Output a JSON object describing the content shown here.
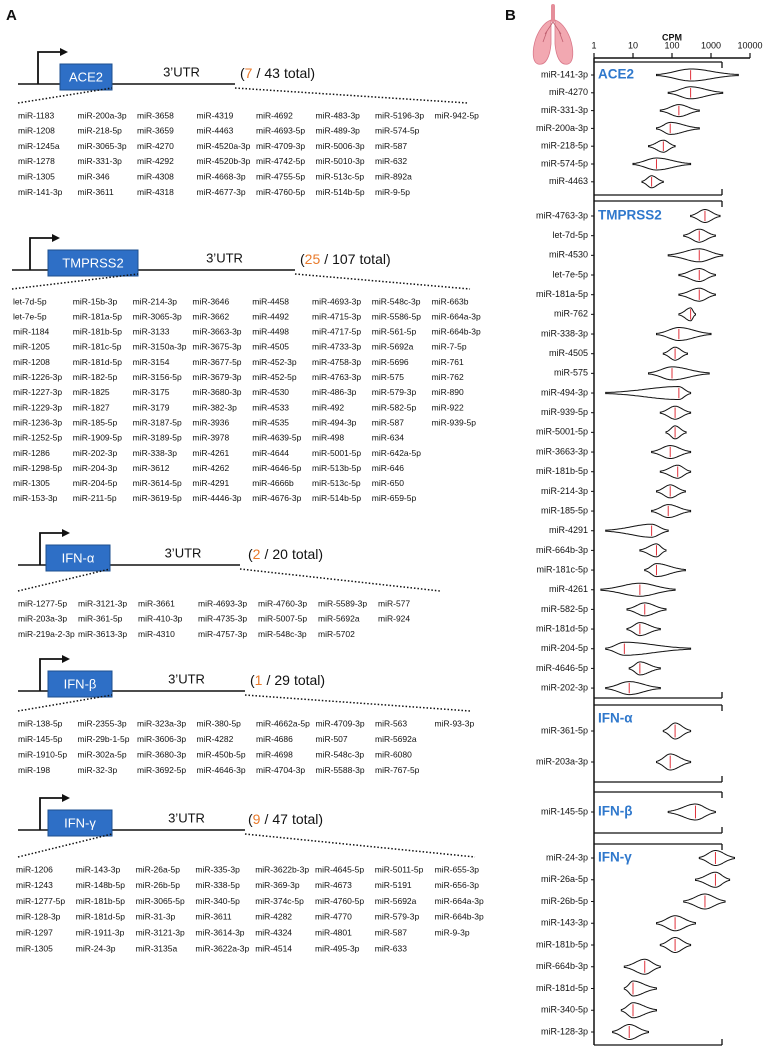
{
  "panel_a": {
    "label": "A",
    "utr_label": "3’UTR",
    "genes": [
      {
        "name": "ACE2",
        "count": {
          "open": "(",
          "hits": 7,
          "sep": "/",
          "total": 43,
          "close": "total)"
        },
        "rows": [
          [
            "miR-1183",
            "miR-200a-3p",
            "miR-3658",
            "miR-4319",
            "miR-4692",
            "miR-483-3p",
            "miR-5196-3p",
            "miR-942-5p"
          ],
          [
            "miR-1208",
            "miR-218-5p",
            "miR-3659",
            "miR-4463",
            "miR-4693-5p",
            "miR-489-3p",
            "miR-574-5p"
          ],
          [
            "miR-1245a",
            "miR-3065-3p",
            "miR-4270",
            "miR-4520a-3p",
            "miR-4709-3p",
            "miR-5006-3p",
            "miR-587"
          ],
          [
            "miR-1278",
            "miR-331-3p",
            "miR-4292",
            "miR-4520b-3p",
            "miR-4742-5p",
            "miR-5010-3p",
            "miR-632"
          ],
          [
            "miR-1305",
            "miR-346",
            "miR-4308",
            "miR-4668-3p",
            "miR-4755-5p",
            "miR-513c-5p",
            "miR-892a"
          ],
          [
            "miR-141-3p",
            "miR-3611",
            "miR-4318",
            "miR-4677-3p",
            "miR-4760-5p",
            "miR-514b-5p",
            "miR-9-5p"
          ]
        ],
        "highlighted": [
          [
            0,
            1
          ],
          [
            1,
            1
          ],
          [
            1,
            3
          ],
          [
            1,
            6
          ],
          [
            2,
            2
          ],
          [
            3,
            1
          ],
          [
            5,
            0
          ]
        ]
      },
      {
        "name": "TMPRSS2",
        "count": {
          "open": "(",
          "hits": 25,
          "sep": "/",
          "total": 107,
          "close": "total)"
        },
        "rows": [
          [
            "let-7d-5p",
            "miR-15b-3p",
            "miR-214-3p",
            "miR-3646",
            "miR-4458",
            "miR-4693-3p",
            "miR-548c-3p",
            "miR-663b"
          ],
          [
            "let-7e-5p",
            "miR-181a-5p",
            "miR-3065-3p",
            "miR-3662",
            "miR-4492",
            "miR-4715-3p",
            "miR-5586-5p",
            "miR-664a-3p"
          ],
          [
            "miR-1184",
            "miR-181b-5p",
            "miR-3133",
            "miR-3663-3p",
            "miR-4498",
            "miR-4717-5p",
            "miR-561-5p",
            "miR-664b-3p"
          ],
          [
            "miR-1205",
            "miR-181c-5p",
            "miR-3150a-3p",
            "miR-3675-3p",
            "miR-4505",
            "miR-4733-3p",
            "miR-5692a",
            "miR-7-5p"
          ],
          [
            "miR-1208",
            "miR-181d-5p",
            "miR-3154",
            "miR-3677-5p",
            "miR-452-3p",
            "miR-4758-3p",
            "miR-5696",
            "miR-761"
          ],
          [
            "miR-1226-3p",
            "miR-182-5p",
            "miR-3156-5p",
            "miR-3679-3p",
            "miR-452-5p",
            "miR-4763-3p",
            "miR-575",
            "miR-762"
          ],
          [
            "miR-1227-3p",
            "miR-1825",
            "miR-3175",
            "miR-3680-3p",
            "miR-4530",
            "miR-486-3p",
            "miR-579-3p",
            "miR-890"
          ],
          [
            "miR-1229-3p",
            "miR-1827",
            "miR-3179",
            "miR-382-3p",
            "miR-4533",
            "miR-492",
            "miR-582-5p",
            "miR-922"
          ],
          [
            "miR-1236-3p",
            "miR-185-5p",
            "miR-3187-5p",
            "miR-3936",
            "miR-4535",
            "miR-494-3p",
            "miR-587",
            "miR-939-5p"
          ],
          [
            "miR-1252-5p",
            "miR-1909-5p",
            "miR-3189-5p",
            "miR-3978",
            "miR-4639-5p",
            "miR-498",
            "miR-634"
          ],
          [
            "miR-1286",
            "miR-202-3p",
            "miR-338-3p",
            "miR-4261",
            "miR-4644",
            "miR-5001-5p",
            "miR-642a-5p"
          ],
          [
            "miR-1298-5p",
            "miR-204-3p",
            "miR-3612",
            "miR-4262",
            "miR-4646-5p",
            "miR-513b-5p",
            "miR-646"
          ],
          [
            "miR-1305",
            "miR-204-5p",
            "miR-3614-5p",
            "miR-4291",
            "miR-4666b",
            "miR-513c-5p",
            "miR-650"
          ],
          [
            "miR-153-3p",
            "miR-211-5p",
            "miR-3619-5p",
            "miR-4446-3p",
            "miR-4676-3p",
            "miR-514b-5p",
            "miR-659-5p"
          ]
        ],
        "highlighted": [
          [
            0,
            0
          ],
          [
            0,
            2
          ],
          [
            1,
            0
          ],
          [
            1,
            1
          ],
          [
            2,
            1
          ],
          [
            2,
            3
          ],
          [
            2,
            7
          ],
          [
            3,
            1
          ],
          [
            3,
            4
          ],
          [
            4,
            1
          ],
          [
            5,
            5
          ],
          [
            5,
            6
          ],
          [
            5,
            7
          ],
          [
            6,
            4
          ],
          [
            7,
            6
          ],
          [
            8,
            1
          ],
          [
            8,
            5
          ],
          [
            8,
            7
          ],
          [
            10,
            1
          ],
          [
            10,
            2
          ],
          [
            10,
            3
          ],
          [
            10,
            5
          ],
          [
            11,
            4
          ],
          [
            12,
            1
          ],
          [
            12,
            3
          ]
        ]
      },
      {
        "name": "IFN-α",
        "count": {
          "open": "(",
          "hits": 2,
          "sep": "/",
          "total": 20,
          "close": "total)"
        },
        "rows": [
          [
            "miR-1277-5p",
            "miR-3121-3p",
            "miR-3661",
            "miR-4693-3p",
            "miR-4760-3p",
            "miR-5589-3p",
            "miR-577"
          ],
          [
            "miR-203a-3p",
            "miR-361-5p",
            "miR-410-3p",
            "miR-4735-3p",
            "miR-5007-5p",
            "miR-5692a",
            "miR-924"
          ],
          [
            "miR-219a-2-3p",
            "miR-3613-3p",
            "miR-4310",
            "miR-4757-3p",
            "miR-548c-3p",
            "miR-5702"
          ]
        ],
        "highlighted": [
          [
            1,
            0
          ],
          [
            1,
            1
          ]
        ]
      },
      {
        "name": "IFN-β",
        "count": {
          "open": "(",
          "hits": 1,
          "sep": "/",
          "total": 29,
          "close": "total)"
        },
        "rows": [
          [
            "miR-138-5p",
            "miR-2355-3p",
            "miR-323a-3p",
            "miR-380-5p",
            "miR-4662a-5p",
            "miR-4709-3p",
            "miR-563",
            "miR-93-3p"
          ],
          [
            "miR-145-5p",
            "miR-29b-1-5p",
            "miR-3606-3p",
            "miR-4282",
            "miR-4686",
            "miR-507",
            "miR-5692a"
          ],
          [
            "miR-1910-5p",
            "miR-302a-5p",
            "miR-3680-3p",
            "miR-450b-5p",
            "miR-4698",
            "miR-548c-3p",
            "miR-6080"
          ],
          [
            "miR-198",
            "miR-32-3p",
            "miR-3692-5p",
            "miR-4646-3p",
            "miR-4704-3p",
            "miR-5588-3p",
            "miR-767-5p"
          ]
        ],
        "highlighted": [
          [
            1,
            0
          ]
        ]
      },
      {
        "name": "IFN-γ",
        "count": {
          "open": "(",
          "hits": 9,
          "sep": "/",
          "total": 47,
          "close": "total)"
        },
        "rows": [
          [
            "miR-1206",
            "miR-143-3p",
            "miR-26a-5p",
            "miR-335-3p",
            "miR-3622b-3p",
            "miR-4645-5p",
            "miR-5011-5p",
            "miR-655-3p"
          ],
          [
            "miR-1243",
            "miR-148b-5p",
            "miR-26b-5p",
            "miR-338-5p",
            "miR-369-3p",
            "miR-4673",
            "miR-5191",
            "miR-656-3p"
          ],
          [
            "miR-1277-5p",
            "miR-181b-5p",
            "miR-3065-5p",
            "miR-340-5p",
            "miR-374c-5p",
            "miR-4760-5p",
            "miR-5692a",
            "miR-664a-3p"
          ],
          [
            "miR-128-3p",
            "miR-181d-5p",
            "miR-31-3p",
            "miR-3611",
            "miR-4282",
            "miR-4770",
            "miR-579-3p",
            "miR-664b-3p"
          ],
          [
            "miR-1297",
            "miR-1911-3p",
            "miR-3121-3p",
            "miR-3614-3p",
            "miR-4324",
            "miR-4801",
            "miR-587",
            "miR-9-3p"
          ],
          [
            "miR-1305",
            "miR-24-3p",
            "miR-3135a",
            "miR-3622a-3p",
            "miR-4514",
            "miR-495-3p",
            "miR-633"
          ]
        ],
        "highlighted": [
          [
            0,
            1
          ],
          [
            0,
            2
          ],
          [
            1,
            2
          ],
          [
            2,
            1
          ],
          [
            2,
            3
          ],
          [
            3,
            0
          ],
          [
            3,
            1
          ],
          [
            3,
            7
          ],
          [
            5,
            1
          ]
        ]
      }
    ]
  },
  "chart_data": {
    "type": "violin",
    "panel_label": "B",
    "x_label": "CPM",
    "log_x": true,
    "xlim": [
      1,
      10000
    ],
    "xticks": [
      1,
      10,
      100,
      1000,
      10000
    ],
    "highlight_color": "#e97a2b",
    "groups": [
      {
        "name": "ACE2",
        "mirnas": [
          "miR-141-3p",
          "miR-4270",
          "miR-331-3p",
          "miR-200a-3p",
          "miR-218-5p",
          "miR-574-5p",
          "miR-4463"
        ],
        "min": [
          40,
          80,
          50,
          40,
          25,
          10,
          17
        ],
        "median": [
          300,
          300,
          150,
          90,
          60,
          40,
          30
        ],
        "max": [
          5000,
          2000,
          500,
          500,
          120,
          300,
          60
        ]
      },
      {
        "name": "TMPRSS2",
        "mirnas": [
          "miR-4763-3p",
          "let-7d-5p",
          "miR-4530",
          "let-7e-5p",
          "miR-181a-5p",
          "miR-762",
          "miR-338-3p",
          "miR-4505",
          "miR-575",
          "miR-494-3p",
          "miR-939-5p",
          "miR-5001-5p",
          "miR-3663-3p",
          "miR-181b-5p",
          "miR-214-3p",
          "miR-185-5p",
          "miR-4291",
          "miR-664b-3p",
          "miR-181c-5p",
          "miR-4261",
          "miR-582-5p",
          "miR-181d-5p",
          "miR-204-5p",
          "miR-4646-5p",
          "miR-202-3p"
        ],
        "min": [
          300,
          200,
          80,
          150,
          150,
          150,
          40,
          60,
          25,
          2,
          50,
          70,
          30,
          50,
          40,
          30,
          2,
          15,
          20,
          1.5,
          7,
          7,
          2,
          8,
          2
        ],
        "median": [
          700,
          500,
          500,
          500,
          500,
          300,
          150,
          120,
          100,
          150,
          120,
          120,
          90,
          140,
          90,
          80,
          30,
          40,
          40,
          15,
          20,
          15,
          6,
          15,
          8
        ],
        "max": [
          1700,
          1300,
          2000,
          1300,
          1300,
          400,
          1000,
          250,
          900,
          300,
          300,
          230,
          300,
          300,
          220,
          300,
          80,
          70,
          220,
          120,
          70,
          50,
          300,
          50,
          50
        ]
      },
      {
        "name": "IFN-α",
        "mirnas": [
          "miR-361-5p",
          "miR-203a-3p"
        ],
        "min": [
          60,
          40
        ],
        "median": [
          120,
          90
        ],
        "max": [
          300,
          300
        ]
      },
      {
        "name": "IFN-β",
        "mirnas": [
          "miR-145-5p"
        ],
        "min": [
          80
        ],
        "median": [
          400
        ],
        "max": [
          1300
        ]
      },
      {
        "name": "IFN-γ",
        "mirnas": [
          "miR-24-3p",
          "miR-26a-5p",
          "miR-26b-5p",
          "miR-143-3p",
          "miR-181b-5p",
          "miR-664b-3p",
          "miR-181d-5p",
          "miR-340-5p",
          "miR-128-3p"
        ],
        "min": [
          500,
          400,
          200,
          40,
          50,
          6,
          6,
          5,
          3
        ],
        "median": [
          1300,
          1300,
          700,
          120,
          120,
          20,
          10,
          10,
          8
        ],
        "max": [
          4000,
          3000,
          2300,
          400,
          300,
          50,
          40,
          40,
          25
        ]
      }
    ]
  }
}
